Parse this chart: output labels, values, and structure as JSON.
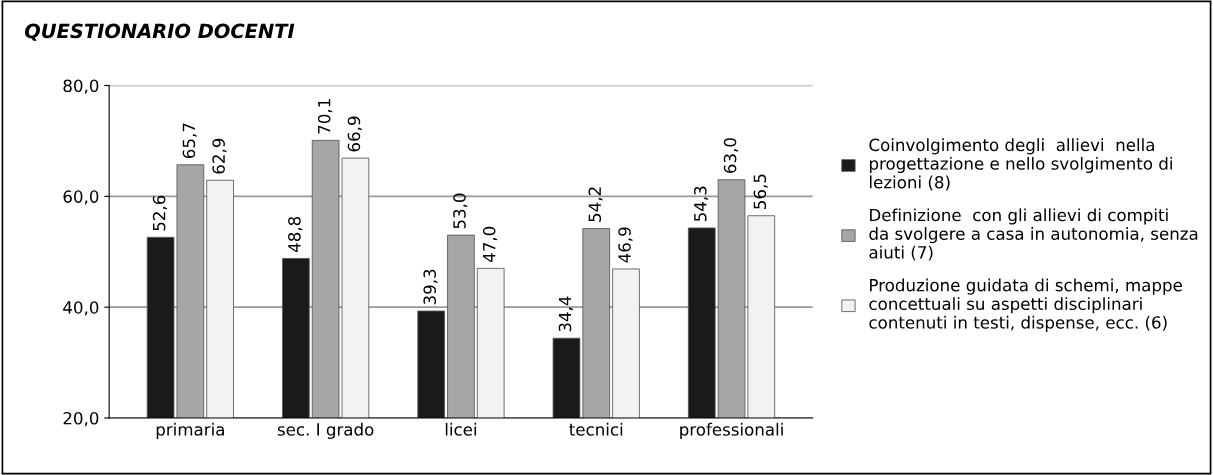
{
  "chart_data": {
    "type": "bar",
    "title": "QUESTIONARIO DOCENTI",
    "categories": [
      "primaria",
      "sec. I grado",
      "licei",
      "tecnici",
      "professionali"
    ],
    "series": [
      {
        "name": "Coinvolgimento degli  allievi  nella progettazione e nello svolgimento di lezioni (8)",
        "color": "#1a1a1a",
        "values": [
          52.6,
          48.8,
          39.3,
          34.4,
          54.3
        ],
        "value_labels": [
          "52,6",
          "48,8",
          "39,3",
          "34,4",
          "54,3"
        ]
      },
      {
        "name": "Definizione  con gli allievi di compiti da svolgere a casa in autonomia, senza aiuti (7)",
        "color": "#a6a6a6",
        "values": [
          65.7,
          70.1,
          53.0,
          54.2,
          63.0
        ],
        "value_labels": [
          "65,7",
          "70,1",
          "53,0",
          "54,2",
          "63,0"
        ]
      },
      {
        "name": "Produzione guidata di schemi, mappe concettuali su aspetti disciplinari contenuti in testi, dispense, ecc. (6)",
        "color": "#f2f2f2",
        "values": [
          62.9,
          66.9,
          47.0,
          46.9,
          56.5
        ],
        "value_labels": [
          "62,9",
          "66,9",
          "47,0",
          "46,9",
          "56,5"
        ]
      }
    ],
    "ylim": [
      20,
      80
    ],
    "yticks": [
      {
        "value": 20,
        "label": "20,0"
      },
      {
        "value": 40,
        "label": "40,0"
      },
      {
        "value": 60,
        "label": "60,0"
      },
      {
        "value": 80,
        "label": "80,0"
      }
    ],
    "grid": "y",
    "legend": "right"
  }
}
